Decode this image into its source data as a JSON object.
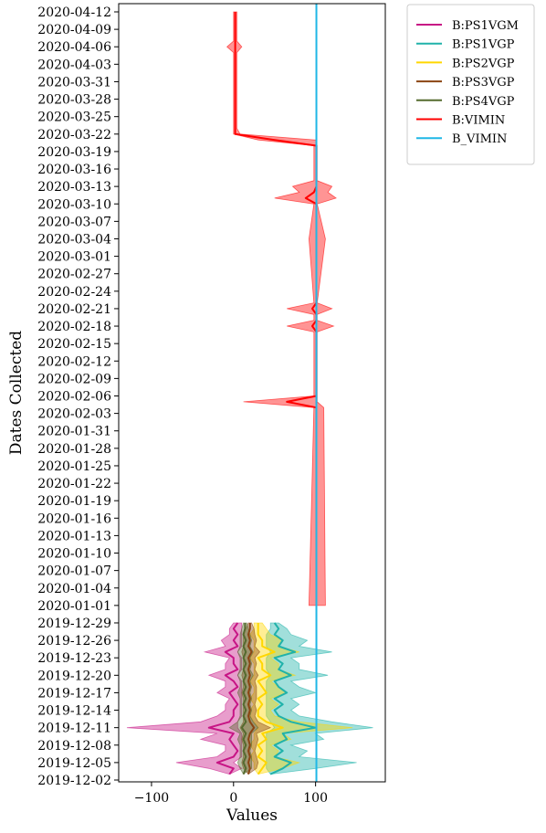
{
  "chart_data": {
    "type": "line",
    "title": "",
    "xlabel": "Values",
    "ylabel": "Dates Collected",
    "xlim": [
      -140,
      185
    ],
    "ylim": [
      "2019-12-02",
      "2020-04-12"
    ],
    "x_ticks": [
      -100,
      0,
      100
    ],
    "x_tick_labels": [
      "−100",
      "0",
      "100"
    ],
    "y_tick_labels": [
      "2020-04-12",
      "2020-04-09",
      "2020-04-06",
      "2020-04-03",
      "2020-03-31",
      "2020-03-28",
      "2020-03-25",
      "2020-03-22",
      "2020-03-19",
      "2020-03-16",
      "2020-03-13",
      "2020-03-10",
      "2020-03-07",
      "2020-03-04",
      "2020-03-01",
      "2020-02-27",
      "2020-02-24",
      "2020-02-21",
      "2020-02-18",
      "2020-02-15",
      "2020-02-12",
      "2020-02-09",
      "2020-02-06",
      "2020-02-03",
      "2020-01-31",
      "2020-01-28",
      "2020-01-25",
      "2020-01-22",
      "2020-01-19",
      "2020-01-16",
      "2020-01-13",
      "2020-01-10",
      "2020-01-07",
      "2020-01-04",
      "2020-01-01",
      "2019-12-29",
      "2019-12-26",
      "2019-12-23",
      "2019-12-20",
      "2019-12-17",
      "2019-12-14",
      "2019-12-11",
      "2019-12-08",
      "2019-12-05",
      "2019-12-02"
    ],
    "grid": false,
    "legend_position": "outside-top-right",
    "series": [
      {
        "name": "B:PS1VGM",
        "color": "#c71585",
        "points": [
          [
            "2019-12-03",
            -5,
            -5,
            -5
          ],
          [
            "2019-12-04",
            0,
            -30,
            10
          ],
          [
            "2019-12-05",
            -20,
            -70,
            0
          ],
          [
            "2019-12-06",
            0,
            -20,
            10
          ],
          [
            "2019-12-07",
            5,
            -10,
            10
          ],
          [
            "2019-12-08",
            0,
            -10,
            10
          ],
          [
            "2019-12-09",
            -5,
            -40,
            10
          ],
          [
            "2019-12-10",
            0,
            -20,
            10
          ],
          [
            "2019-12-11",
            -30,
            -130,
            5
          ],
          [
            "2019-12-12",
            -5,
            -40,
            5
          ],
          [
            "2019-12-13",
            0,
            -20,
            10
          ],
          [
            "2019-12-14",
            0,
            -10,
            10
          ],
          [
            "2019-12-15",
            5,
            -10,
            10
          ],
          [
            "2019-12-16",
            0,
            -5,
            10
          ],
          [
            "2019-12-17",
            -5,
            -20,
            10
          ],
          [
            "2019-12-18",
            5,
            -10,
            10
          ],
          [
            "2019-12-19",
            0,
            -10,
            10
          ],
          [
            "2019-12-20",
            -10,
            -30,
            5
          ],
          [
            "2019-12-21",
            5,
            -10,
            10
          ],
          [
            "2019-12-22",
            0,
            -10,
            10
          ],
          [
            "2019-12-23",
            0,
            -5,
            10
          ],
          [
            "2019-12-24",
            -10,
            -35,
            5
          ],
          [
            "2019-12-25",
            5,
            -10,
            10
          ],
          [
            "2019-12-26",
            0,
            -15,
            10
          ],
          [
            "2019-12-27",
            5,
            -5,
            10
          ],
          [
            "2019-12-28",
            0,
            -5,
            10
          ],
          [
            "2019-12-29",
            5,
            0,
            10
          ]
        ]
      },
      {
        "name": "B:PS1VGP",
        "color": "#20b2aa",
        "points": [
          [
            "2019-12-03",
            45,
            45,
            45
          ],
          [
            "2019-12-04",
            60,
            40,
            100
          ],
          [
            "2019-12-05",
            70,
            40,
            150
          ],
          [
            "2019-12-06",
            50,
            40,
            80
          ],
          [
            "2019-12-07",
            60,
            40,
            90
          ],
          [
            "2019-12-08",
            50,
            40,
            70
          ],
          [
            "2019-12-09",
            65,
            40,
            110
          ],
          [
            "2019-12-10",
            60,
            40,
            100
          ],
          [
            "2019-12-11",
            100,
            50,
            170
          ],
          [
            "2019-12-12",
            70,
            45,
            120
          ],
          [
            "2019-12-13",
            55,
            40,
            80
          ],
          [
            "2019-12-14",
            50,
            40,
            70
          ],
          [
            "2019-12-15",
            60,
            40,
            80
          ],
          [
            "2019-12-16",
            50,
            40,
            70
          ],
          [
            "2019-12-17",
            65,
            40,
            100
          ],
          [
            "2019-12-18",
            55,
            40,
            80
          ],
          [
            "2019-12-19",
            50,
            40,
            70
          ],
          [
            "2019-12-20",
            70,
            45,
            115
          ],
          [
            "2019-12-21",
            55,
            40,
            80
          ],
          [
            "2019-12-22",
            60,
            40,
            80
          ],
          [
            "2019-12-23",
            50,
            40,
            70
          ],
          [
            "2019-12-24",
            75,
            45,
            120
          ],
          [
            "2019-12-25",
            55,
            40,
            80
          ],
          [
            "2019-12-26",
            60,
            40,
            90
          ],
          [
            "2019-12-27",
            50,
            40,
            70
          ],
          [
            "2019-12-28",
            55,
            45,
            65
          ],
          [
            "2019-12-29",
            50,
            45,
            55
          ]
        ]
      },
      {
        "name": "B:PS2VGP",
        "color": "#ffd700",
        "points": [
          [
            "2019-12-03",
            30,
            30,
            30
          ],
          [
            "2019-12-04",
            35,
            25,
            60
          ],
          [
            "2019-12-05",
            40,
            25,
            80
          ],
          [
            "2019-12-06",
            30,
            20,
            50
          ],
          [
            "2019-12-07",
            35,
            25,
            55
          ],
          [
            "2019-12-08",
            30,
            20,
            45
          ],
          [
            "2019-12-09",
            40,
            25,
            70
          ],
          [
            "2019-12-10",
            35,
            25,
            60
          ],
          [
            "2019-12-11",
            60,
            30,
            145
          ],
          [
            "2019-12-12",
            40,
            25,
            80
          ],
          [
            "2019-12-13",
            30,
            20,
            50
          ],
          [
            "2019-12-14",
            30,
            20,
            45
          ],
          [
            "2019-12-15",
            35,
            25,
            55
          ],
          [
            "2019-12-16",
            30,
            20,
            45
          ],
          [
            "2019-12-17",
            40,
            25,
            65
          ],
          [
            "2019-12-18",
            35,
            25,
            55
          ],
          [
            "2019-12-19",
            30,
            20,
            45
          ],
          [
            "2019-12-20",
            45,
            25,
            75
          ],
          [
            "2019-12-21",
            35,
            25,
            55
          ],
          [
            "2019-12-22",
            35,
            25,
            55
          ],
          [
            "2019-12-23",
            30,
            20,
            45
          ],
          [
            "2019-12-24",
            50,
            25,
            80
          ],
          [
            "2019-12-25",
            35,
            25,
            55
          ],
          [
            "2019-12-26",
            35,
            25,
            60
          ],
          [
            "2019-12-27",
            30,
            20,
            45
          ],
          [
            "2019-12-28",
            30,
            25,
            40
          ],
          [
            "2019-12-29",
            30,
            25,
            35
          ]
        ]
      },
      {
        "name": "B:PS3VGP",
        "color": "#8b4513",
        "points": [
          [
            "2019-12-03",
            18,
            18,
            18
          ],
          [
            "2019-12-04",
            20,
            12,
            28
          ],
          [
            "2019-12-05",
            18,
            10,
            30
          ],
          [
            "2019-12-06",
            20,
            12,
            28
          ],
          [
            "2019-12-07",
            18,
            12,
            26
          ],
          [
            "2019-12-08",
            20,
            12,
            28
          ],
          [
            "2019-12-09",
            18,
            10,
            30
          ],
          [
            "2019-12-10",
            20,
            12,
            28
          ],
          [
            "2019-12-11",
            25,
            8,
            45
          ],
          [
            "2019-12-12",
            20,
            12,
            30
          ],
          [
            "2019-12-13",
            18,
            12,
            26
          ],
          [
            "2019-12-14",
            20,
            12,
            28
          ],
          [
            "2019-12-15",
            18,
            12,
            26
          ],
          [
            "2019-12-16",
            20,
            12,
            28
          ],
          [
            "2019-12-17",
            18,
            10,
            28
          ],
          [
            "2019-12-18",
            20,
            12,
            28
          ],
          [
            "2019-12-19",
            18,
            12,
            26
          ],
          [
            "2019-12-20",
            20,
            10,
            30
          ],
          [
            "2019-12-21",
            18,
            12,
            26
          ],
          [
            "2019-12-22",
            20,
            12,
            28
          ],
          [
            "2019-12-23",
            18,
            12,
            26
          ],
          [
            "2019-12-24",
            22,
            10,
            32
          ],
          [
            "2019-12-25",
            18,
            12,
            26
          ],
          [
            "2019-12-26",
            20,
            12,
            28
          ],
          [
            "2019-12-27",
            18,
            12,
            26
          ],
          [
            "2019-12-28",
            20,
            15,
            25
          ],
          [
            "2019-12-29",
            20,
            18,
            22
          ]
        ]
      },
      {
        "name": "B:PS4VGP",
        "color": "#556b2f",
        "points": [
          [
            "2019-12-03",
            12,
            12,
            12
          ],
          [
            "2019-12-04",
            15,
            8,
            22
          ],
          [
            "2019-12-05",
            12,
            5,
            22
          ],
          [
            "2019-12-06",
            15,
            8,
            22
          ],
          [
            "2019-12-07",
            12,
            8,
            20
          ],
          [
            "2019-12-08",
            15,
            8,
            22
          ],
          [
            "2019-12-09",
            12,
            5,
            22
          ],
          [
            "2019-12-10",
            15,
            8,
            22
          ],
          [
            "2019-12-11",
            10,
            -5,
            30
          ],
          [
            "2019-12-12",
            15,
            5,
            24
          ],
          [
            "2019-12-13",
            12,
            8,
            20
          ],
          [
            "2019-12-14",
            15,
            8,
            22
          ],
          [
            "2019-12-15",
            12,
            8,
            20
          ],
          [
            "2019-12-16",
            15,
            8,
            22
          ],
          [
            "2019-12-17",
            12,
            5,
            20
          ],
          [
            "2019-12-18",
            15,
            8,
            22
          ],
          [
            "2019-12-19",
            12,
            8,
            20
          ],
          [
            "2019-12-20",
            15,
            5,
            24
          ],
          [
            "2019-12-21",
            12,
            8,
            20
          ],
          [
            "2019-12-22",
            15,
            8,
            22
          ],
          [
            "2019-12-23",
            12,
            8,
            20
          ],
          [
            "2019-12-24",
            15,
            5,
            24
          ],
          [
            "2019-12-25",
            12,
            8,
            20
          ],
          [
            "2019-12-26",
            15,
            8,
            22
          ],
          [
            "2019-12-27",
            12,
            8,
            20
          ],
          [
            "2019-12-28",
            14,
            10,
            18
          ],
          [
            "2019-12-29",
            14,
            12,
            16
          ]
        ]
      },
      {
        "name": "B:VIMIN",
        "color": "#ff0000",
        "points": [
          [
            "2020-01-01",
            101,
            92,
            112
          ],
          [
            "2020-02-04",
            101,
            98,
            110
          ],
          [
            "2020-02-05",
            65,
            12,
            102
          ],
          [
            "2020-02-06",
            101,
            98,
            102
          ],
          [
            "2020-02-17",
            101,
            98,
            102
          ],
          [
            "2020-02-18",
            96,
            65,
            122
          ],
          [
            "2020-02-19",
            101,
            98,
            102
          ],
          [
            "2020-02-20",
            101,
            98,
            102
          ],
          [
            "2020-02-21",
            96,
            65,
            120
          ],
          [
            "2020-02-22",
            101,
            98,
            102
          ],
          [
            "2020-03-04",
            101,
            92,
            112
          ],
          [
            "2020-03-10",
            101,
            98,
            102
          ],
          [
            "2020-03-11",
            88,
            50,
            125
          ],
          [
            "2020-03-12",
            98,
            80,
            115
          ],
          [
            "2020-03-13",
            101,
            72,
            120
          ],
          [
            "2020-03-14",
            101,
            98,
            102
          ],
          [
            "2020-03-19",
            101,
            98,
            102
          ],
          [
            "2020-03-20",
            101,
            98,
            102
          ],
          [
            "2020-03-21",
            50,
            30,
            100
          ],
          [
            "2020-03-22",
            2,
            0,
            8
          ],
          [
            "2020-03-23",
            2,
            0,
            4
          ],
          [
            "2020-03-30",
            2,
            0,
            4
          ],
          [
            "2020-03-31",
            2,
            0,
            4
          ],
          [
            "2020-04-03",
            2,
            0,
            4
          ],
          [
            "2020-04-05",
            2,
            0,
            4
          ],
          [
            "2020-04-06",
            2,
            -8,
            10
          ],
          [
            "2020-04-07",
            2,
            0,
            4
          ],
          [
            "2020-04-10",
            2,
            0,
            4
          ],
          [
            "2020-04-12",
            2,
            0,
            4
          ]
        ]
      },
      {
        "name": "B_VIMIN",
        "color": "#1fb7e6",
        "constant_x": 101
      }
    ]
  }
}
